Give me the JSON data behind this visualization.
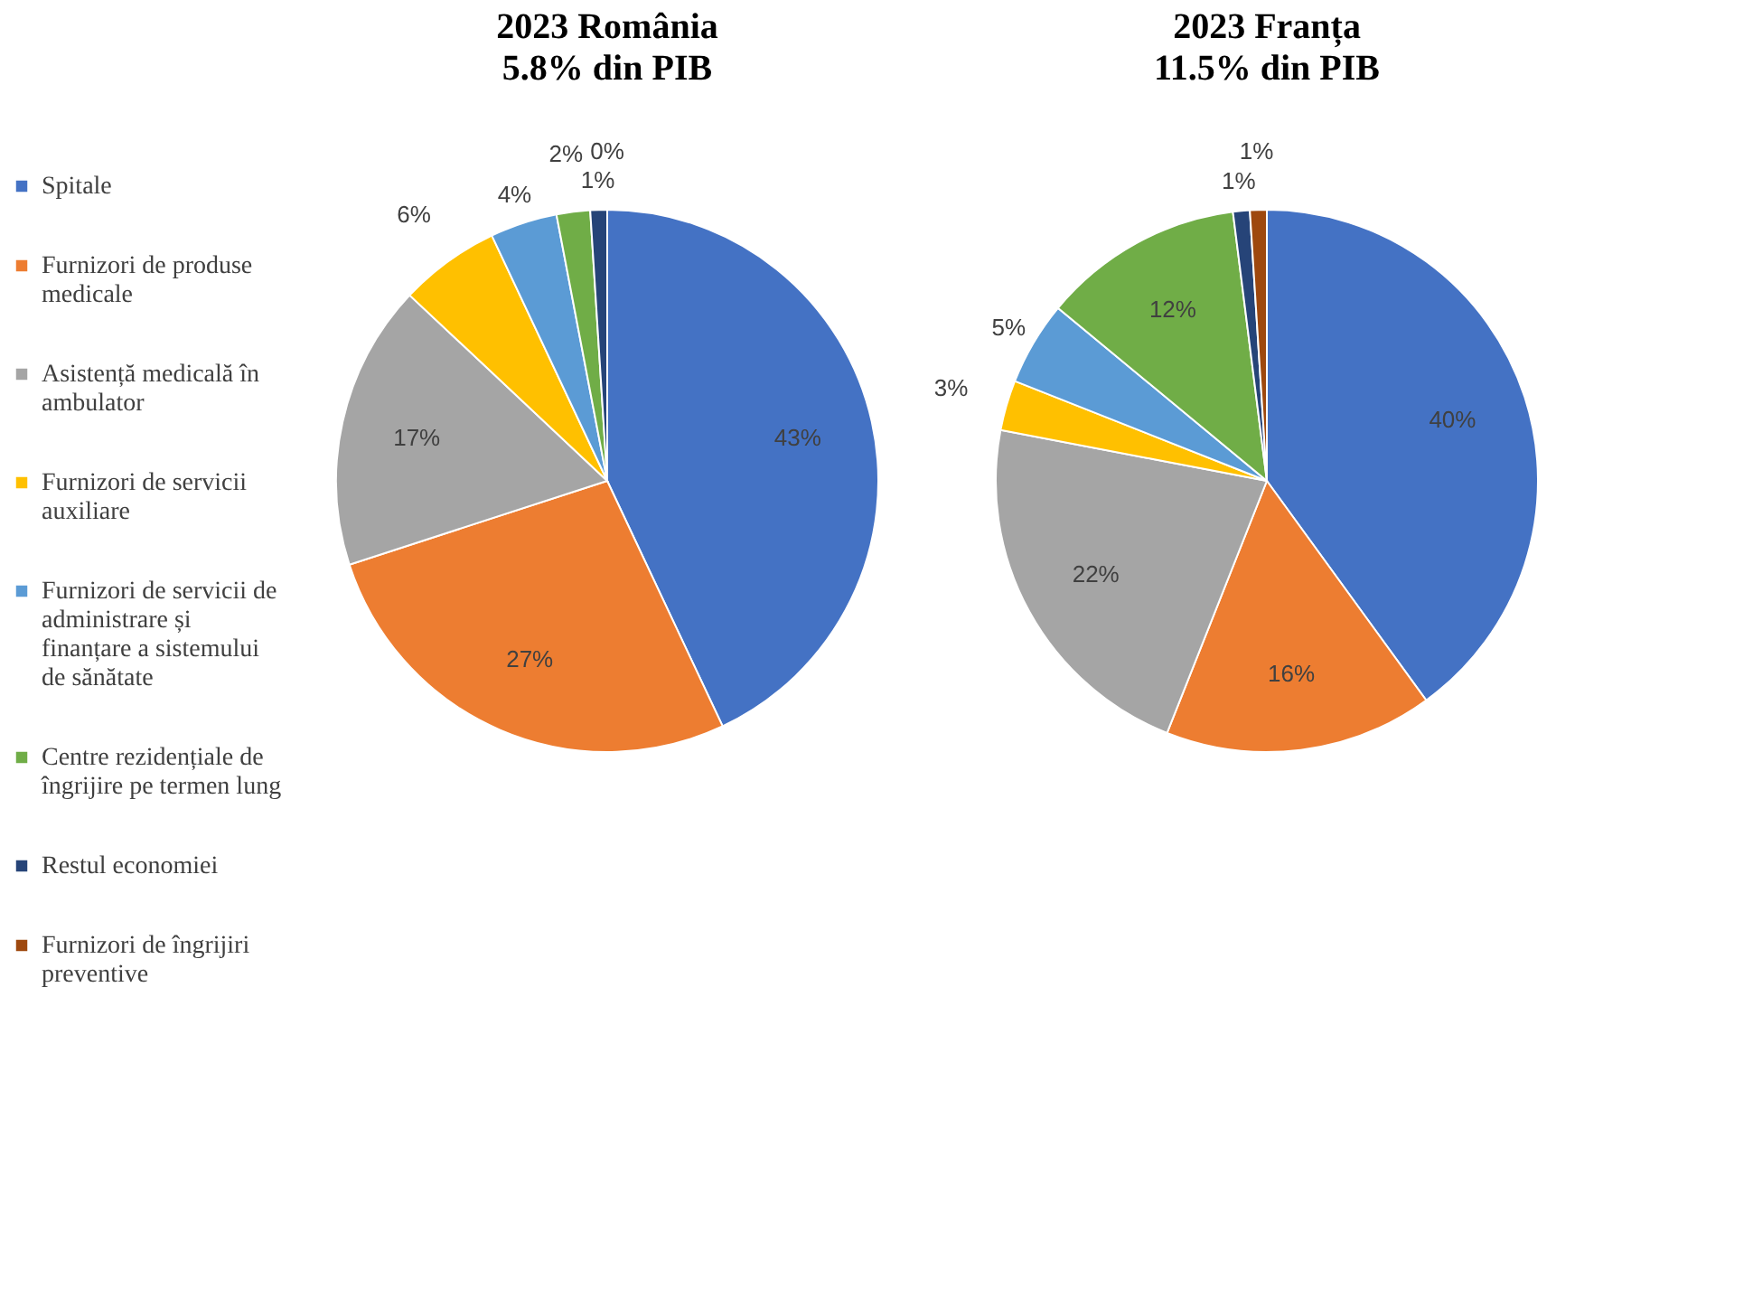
{
  "chart_data": [
    {
      "type": "pie",
      "title": "2023 România",
      "subtitle": "5.8% din PIB",
      "categories": [
        "Spitale",
        "Furnizori de produse medicale",
        "Asistență medicală în ambulator",
        "Furnizori de servicii auxiliare",
        "Furnizori de servicii de administrare și finanțare a sistemului de sănătate",
        "Centre rezidențiale de îngrijire pe termen lung",
        "Restul economiei",
        "Furnizori de îngrijiri preventive"
      ],
      "values": [
        43,
        27,
        17,
        6,
        4,
        2,
        1,
        0
      ],
      "value_labels": [
        "43%",
        "27%",
        "17%",
        "6%",
        "4%",
        "2%",
        "1%",
        "0%"
      ],
      "colors": [
        "#4472c4",
        "#ed7d31",
        "#a5a5a5",
        "#ffc000",
        "#5b9bd5",
        "#70ad47",
        "#264478",
        "#9e480e"
      ],
      "legend": "left"
    },
    {
      "type": "pie",
      "title": "2023 Franța",
      "subtitle": "11.5% din PIB",
      "categories": [
        null,
        null,
        null,
        null,
        null,
        null,
        null,
        null
      ],
      "values": [
        40,
        16,
        22,
        3,
        5,
        12,
        1,
        1
      ],
      "value_labels": [
        "40%",
        "16%",
        "22%",
        "3%",
        "5%",
        "12%",
        "1%",
        "1%"
      ],
      "colors": [
        "#4472c4",
        "#ed7d31",
        "#a5a5a5",
        "#ffc000",
        "#5b9bd5",
        "#70ad47",
        "#264478",
        "#9e480e"
      ]
    }
  ]
}
